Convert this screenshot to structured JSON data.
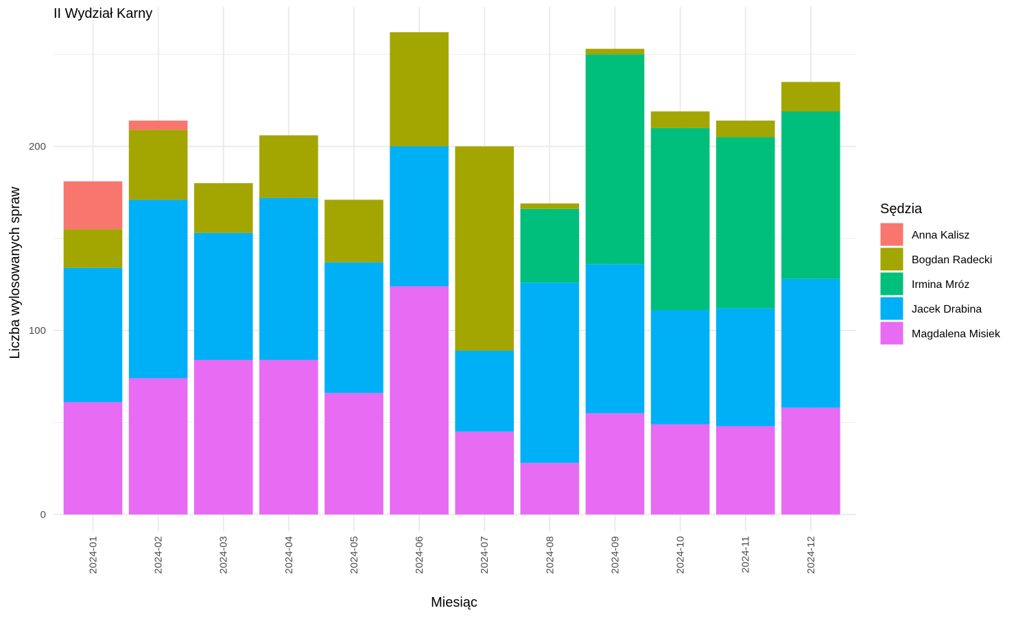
{
  "chart_data": {
    "type": "bar",
    "stacked": true,
    "title": "II Wydział Karny",
    "xlabel": "Miesiąc",
    "ylabel": "Liczba wylosowanych spraw",
    "ylim": [
      -10,
      275
    ],
    "yticks": [
      0,
      100,
      200
    ],
    "grid": true,
    "legend": {
      "title": "Sędzia",
      "position": "right"
    },
    "categories": [
      "2024-01",
      "2024-02",
      "2024-03",
      "2024-04",
      "2024-05",
      "2024-06",
      "2024-07",
      "2024-08",
      "2024-09",
      "2024-10",
      "2024-11",
      "2024-12"
    ],
    "series": [
      {
        "name": "Magdalena Misiek",
        "color": "#E76BF3",
        "values": [
          61,
          74,
          84,
          84,
          66,
          124,
          45,
          28,
          55,
          49,
          48,
          58
        ]
      },
      {
        "name": "Jacek Drabina",
        "color": "#00B0F6",
        "values": [
          73,
          97,
          69,
          88,
          71,
          76,
          44,
          98,
          81,
          62,
          64,
          70
        ]
      },
      {
        "name": "Irmina Mróz",
        "color": "#00BF7D",
        "values": [
          0,
          0,
          0,
          0,
          0,
          0,
          0,
          40,
          114,
          99,
          93,
          91
        ]
      },
      {
        "name": "Bogdan Radecki",
        "color": "#A3A500",
        "values": [
          21,
          38,
          27,
          34,
          34,
          62,
          111,
          3,
          3,
          9,
          9,
          16
        ]
      },
      {
        "name": "Anna Kalisz",
        "color": "#F8766D",
        "values": [
          26,
          5,
          0,
          0,
          0,
          0,
          0,
          0,
          0,
          0,
          0,
          0
        ]
      }
    ],
    "legend_order": [
      "Anna Kalisz",
      "Bogdan Radecki",
      "Irmina Mróz",
      "Jacek Drabina",
      "Magdalena Misiek"
    ],
    "grid_color": "#EBEBEB"
  }
}
